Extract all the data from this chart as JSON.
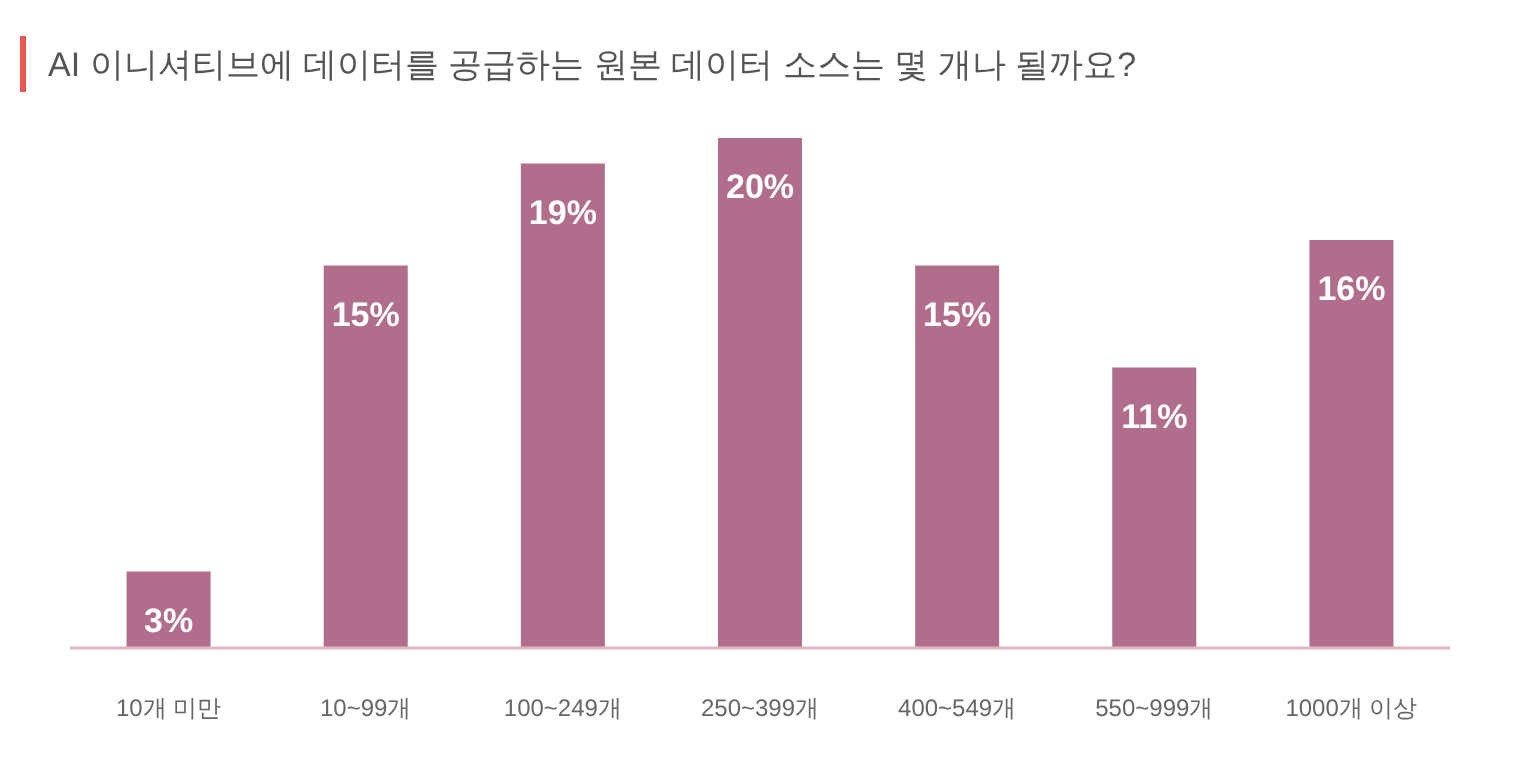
{
  "chart_data": {
    "type": "bar",
    "title": "AI 이니셔티브에 데이터를 공급하는 원본 데이터 소스는 몇 개나 될까요?",
    "categories": [
      "10개 미만",
      "10~99개",
      "100~249개",
      "250~399개",
      "400~549개",
      "550~999개",
      "1000개 이상"
    ],
    "values": [
      3,
      15,
      19,
      20,
      15,
      11,
      16
    ],
    "value_labels": [
      "3%",
      "15%",
      "19%",
      "20%",
      "15%",
      "11%",
      "16%"
    ],
    "color": "#b06e8c"
  }
}
